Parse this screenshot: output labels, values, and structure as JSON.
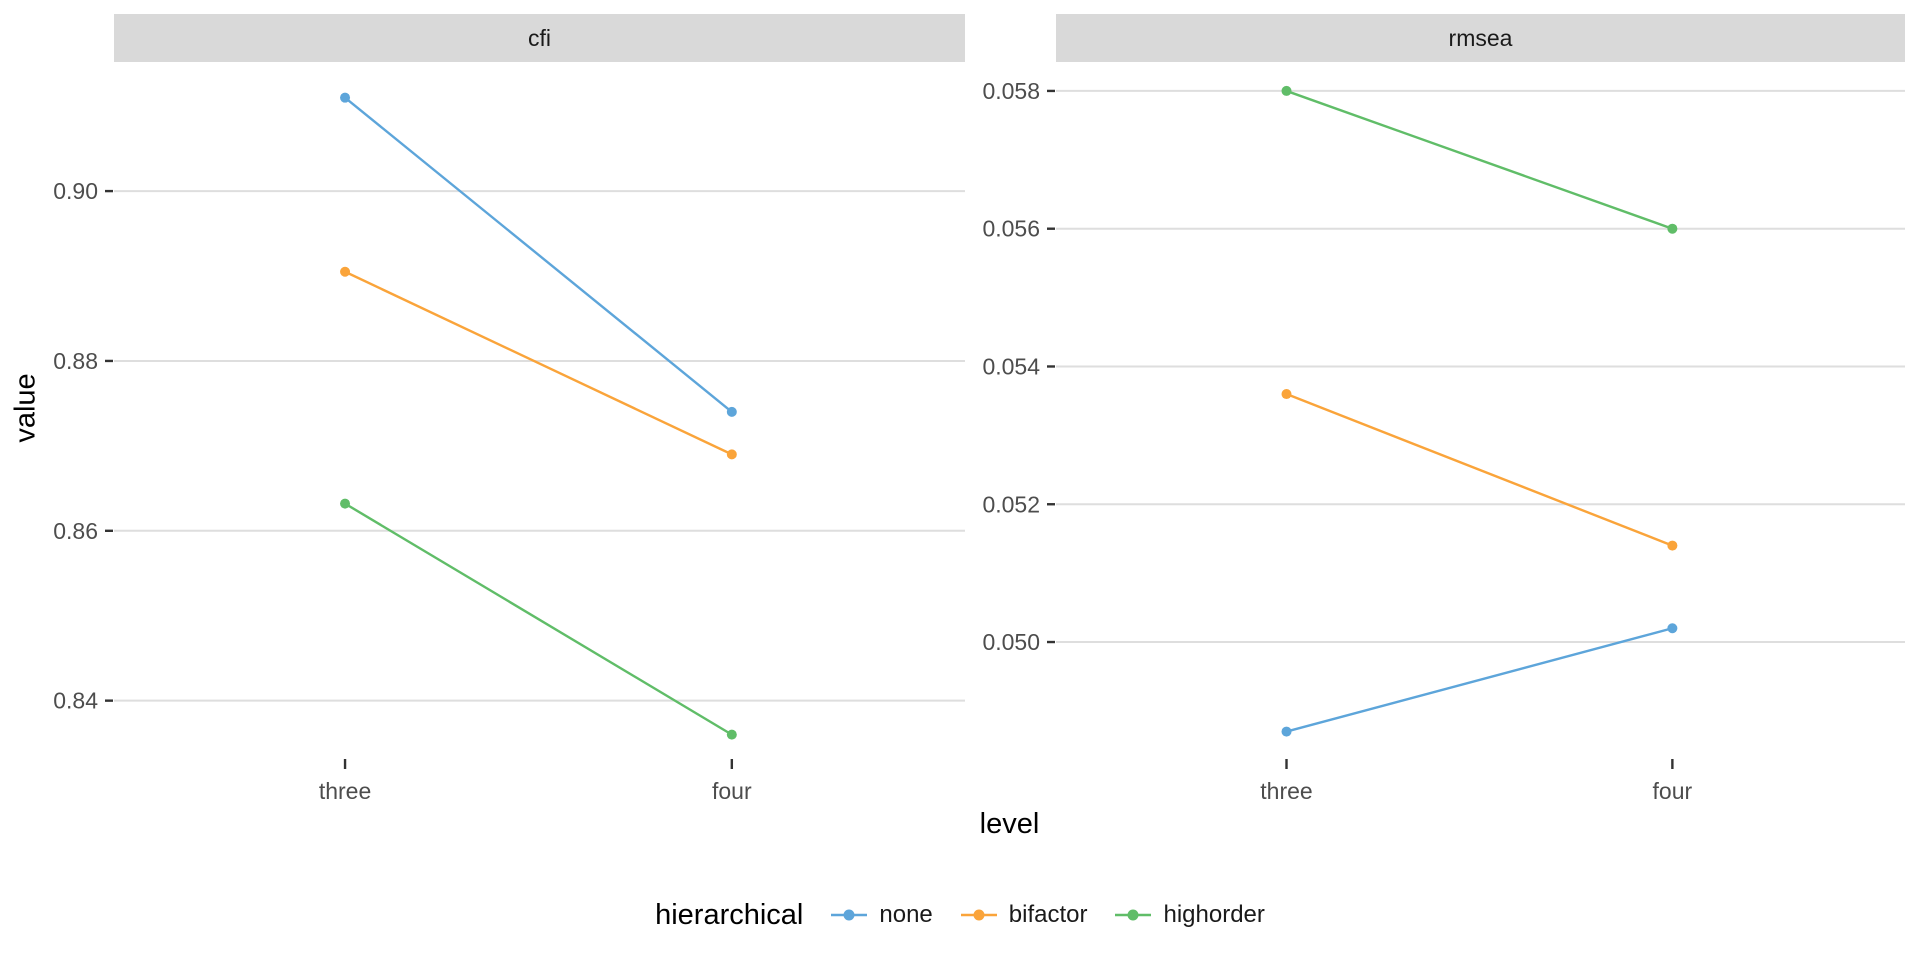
{
  "figure_title": "",
  "chart_data": {
    "type": "line",
    "faceting": "two panels by fit measure, shared x axis",
    "categories": [
      "three",
      "four"
    ],
    "xlabel": "level",
    "ylabel": "value",
    "legend_title": "hierarchical",
    "legend_position": "bottom",
    "grid": true,
    "legend_items": [
      {
        "label": "none",
        "color": "#5DA5DA"
      },
      {
        "label": "bifactor",
        "color": "#FAA43A"
      },
      {
        "label": "highorder",
        "color": "#60BD68"
      }
    ],
    "facets": [
      {
        "label": "cfi",
        "ylim": [
          0.8336,
          0.9152
        ],
        "yticks": [
          0.84,
          0.86,
          0.88,
          0.9
        ],
        "ytick_labels": [
          "0.84",
          "0.86",
          "0.88",
          "0.90"
        ],
        "series": [
          {
            "name": "none",
            "color": "#5DA5DA",
            "values": [
              0.911,
              0.874
            ]
          },
          {
            "name": "bifactor",
            "color": "#FAA43A",
            "values": [
              0.8905,
              0.869
            ]
          },
          {
            "name": "highorder",
            "color": "#60BD68",
            "values": [
              0.8632,
              0.836
            ]
          }
        ]
      },
      {
        "label": "rmsea",
        "ylim": [
          0.04836,
          0.05842
        ],
        "yticks": [
          0.05,
          0.052,
          0.054,
          0.056,
          0.058
        ],
        "ytick_labels": [
          "0.050",
          "0.052",
          "0.054",
          "0.056",
          "0.058"
        ],
        "series": [
          {
            "name": "none",
            "color": "#5DA5DA",
            "values": [
              0.0487,
              0.0502
            ]
          },
          {
            "name": "bifactor",
            "color": "#FAA43A",
            "values": [
              0.0536,
              0.0514
            ]
          },
          {
            "name": "highorder",
            "color": "#60BD68",
            "values": [
              0.058,
              0.056
            ]
          }
        ]
      }
    ],
    "style": {
      "grid_color": "#DEDEDE",
      "strip_bg": "#D9D9D9",
      "tick_color": "#333333",
      "tick_label_color": "#4D4D4D",
      "point_radius": 5,
      "line_width": 2.4
    }
  }
}
